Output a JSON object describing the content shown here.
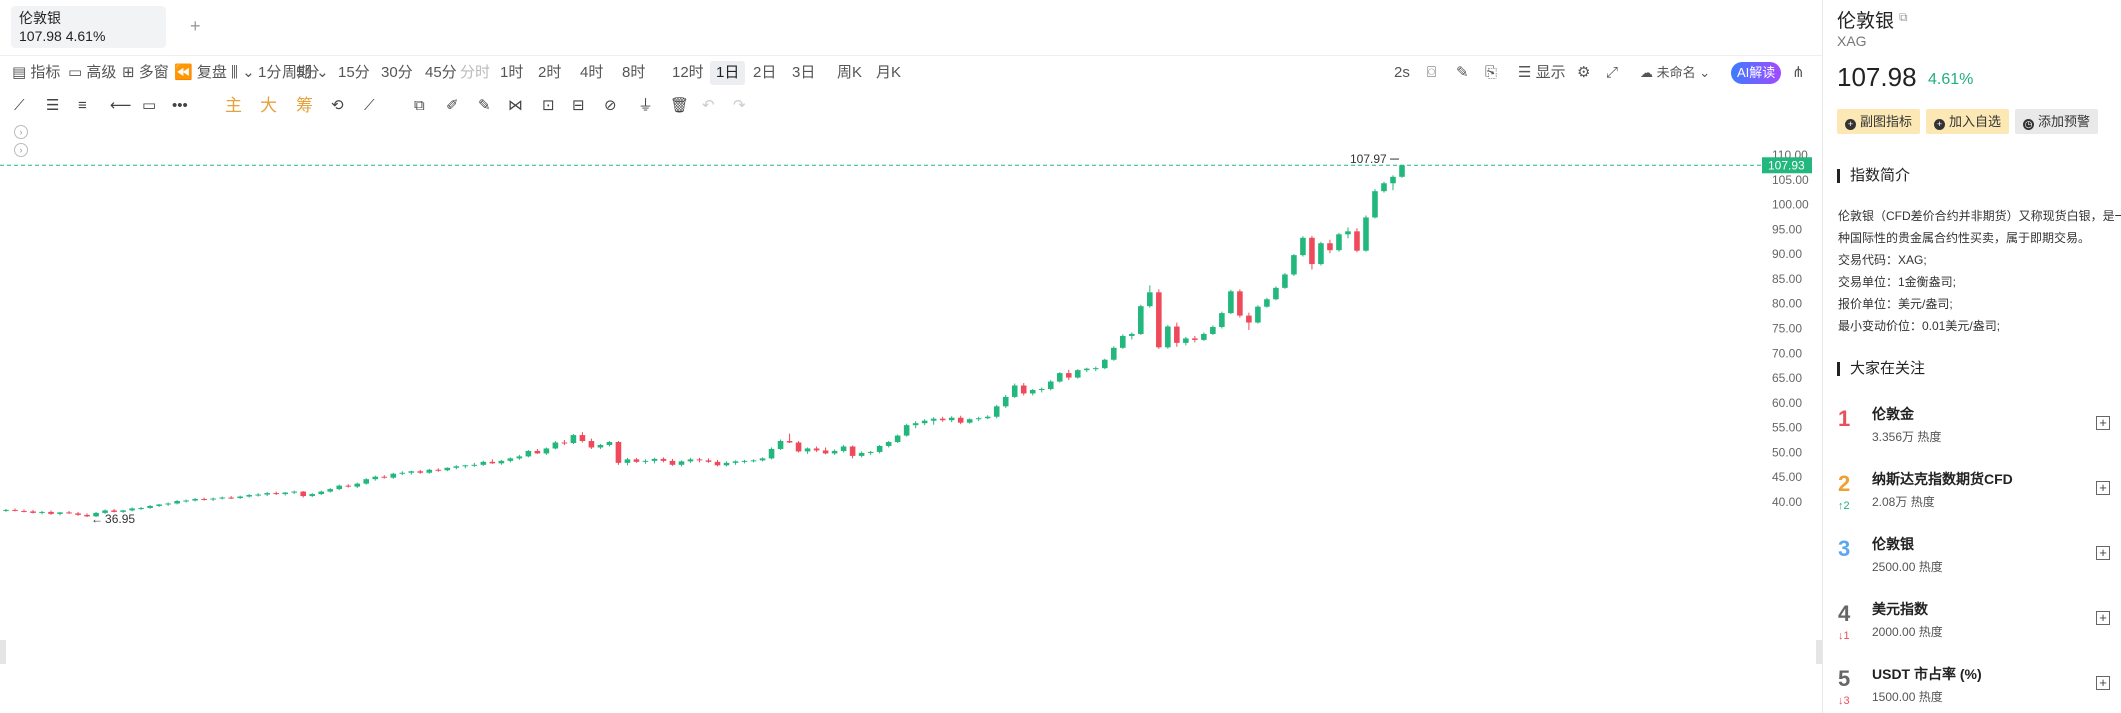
{
  "tabs": [
    {
      "name": "伦敦银",
      "price_change": "107.98 4.61%"
    }
  ],
  "add_tab_label": "+",
  "toolbar1": {
    "indicators": "指标",
    "advanced": "高级",
    "multi": "多窗",
    "replay": "复盘",
    "period": "周期",
    "intervals": [
      "1分",
      "5分",
      "15分",
      "30分",
      "45分",
      "分时",
      "1时",
      "2时",
      "4时",
      "8时",
      "12时",
      "1日",
      "2日",
      "3日",
      "周K",
      "月K"
    ],
    "disabled_interval": "分时",
    "selected_interval": "1日",
    "refresh": "2s",
    "display": "显示",
    "unnamed": "未命名",
    "ai": "AI解读"
  },
  "toolbar2": {
    "zhu": "主",
    "da": "大",
    "chou": "筹"
  },
  "chart_data": {
    "type": "candlestick",
    "ylim": [
      35,
      110
    ],
    "y_ticks": [
      "110.00",
      "105.00",
      "100.00",
      "95.00",
      "90.00",
      "85.00",
      "80.00",
      "75.00",
      "70.00",
      "65.00",
      "60.00",
      "55.00",
      "50.00",
      "45.00",
      "40.00"
    ],
    "last_price_label": "107.93",
    "high_label": "107.97",
    "low_label": "36.95",
    "up_color": "#22b77d",
    "down_color": "#ef4a5b",
    "candles": [
      [
        38.3,
        38.6,
        38.0,
        38.4
      ],
      [
        38.4,
        38.7,
        38.1,
        38.2
      ],
      [
        38.2,
        38.5,
        37.9,
        38.1
      ],
      [
        38.1,
        38.4,
        37.7,
        37.8
      ],
      [
        37.8,
        38.2,
        37.5,
        38.0
      ],
      [
        38.0,
        38.3,
        37.4,
        37.6
      ],
      [
        37.6,
        38.0,
        37.3,
        37.9
      ],
      [
        37.9,
        38.2,
        37.6,
        37.7
      ],
      [
        37.7,
        38.0,
        37.2,
        37.4
      ],
      [
        37.4,
        37.7,
        36.95,
        37.1
      ],
      [
        37.1,
        38.0,
        37.0,
        37.8
      ],
      [
        37.8,
        38.5,
        37.6,
        38.3
      ],
      [
        38.3,
        38.6,
        37.9,
        38.0
      ],
      [
        38.0,
        38.4,
        37.8,
        38.3
      ],
      [
        38.3,
        38.9,
        38.1,
        38.7
      ],
      [
        38.7,
        39.0,
        38.4,
        38.8
      ],
      [
        38.8,
        39.4,
        38.6,
        39.2
      ],
      [
        39.2,
        39.6,
        39.0,
        39.5
      ],
      [
        39.5,
        39.9,
        39.2,
        39.7
      ],
      [
        39.7,
        40.4,
        39.5,
        40.2
      ],
      [
        40.2,
        40.5,
        39.9,
        40.3
      ],
      [
        40.3,
        40.8,
        40.1,
        40.6
      ],
      [
        40.6,
        40.9,
        40.3,
        40.5
      ],
      [
        40.5,
        40.9,
        40.2,
        40.7
      ],
      [
        40.7,
        41.1,
        40.5,
        40.9
      ],
      [
        40.9,
        41.2,
        40.6,
        40.8
      ],
      [
        40.8,
        41.3,
        40.6,
        41.1
      ],
      [
        41.1,
        41.6,
        40.9,
        41.4
      ],
      [
        41.4,
        41.8,
        41.1,
        41.5
      ],
      [
        41.5,
        42.0,
        41.2,
        41.8
      ],
      [
        41.8,
        42.1,
        41.4,
        41.6
      ],
      [
        41.6,
        42.0,
        41.3,
        41.9
      ],
      [
        41.9,
        42.3,
        41.6,
        42.1
      ],
      [
        42.1,
        42.2,
        40.9,
        41.2
      ],
      [
        41.2,
        41.8,
        41.0,
        41.6
      ],
      [
        41.6,
        42.3,
        41.4,
        42.1
      ],
      [
        42.1,
        42.8,
        41.9,
        42.6
      ],
      [
        42.6,
        43.5,
        42.4,
        43.3
      ],
      [
        43.3,
        43.6,
        42.9,
        43.1
      ],
      [
        43.1,
        43.9,
        42.8,
        43.7
      ],
      [
        43.7,
        44.8,
        43.5,
        44.6
      ],
      [
        44.6,
        45.3,
        44.3,
        45.1
      ],
      [
        45.1,
        45.4,
        44.7,
        44.9
      ],
      [
        44.9,
        45.9,
        44.7,
        45.7
      ],
      [
        45.7,
        46.2,
        45.4,
        45.9
      ],
      [
        45.9,
        46.3,
        45.5,
        46.2
      ],
      [
        46.2,
        46.5,
        45.7,
        45.9
      ],
      [
        45.9,
        46.7,
        45.7,
        46.5
      ],
      [
        46.5,
        46.8,
        46.1,
        46.4
      ],
      [
        46.4,
        47.0,
        46.2,
        46.9
      ],
      [
        46.9,
        47.4,
        46.6,
        47.2
      ],
      [
        47.2,
        47.5,
        46.8,
        47.4
      ],
      [
        47.4,
        47.9,
        47.1,
        47.5
      ],
      [
        47.5,
        48.3,
        47.3,
        48.1
      ],
      [
        48.1,
        48.6,
        47.7,
        47.8
      ],
      [
        47.8,
        48.5,
        47.5,
        48.3
      ],
      [
        48.3,
        49.0,
        48.0,
        48.8
      ],
      [
        48.8,
        49.5,
        48.5,
        49.2
      ],
      [
        49.2,
        50.5,
        49.0,
        50.3
      ],
      [
        50.3,
        50.7,
        49.7,
        49.8
      ],
      [
        49.8,
        51.0,
        49.5,
        50.8
      ],
      [
        50.8,
        52.3,
        50.6,
        52.0
      ],
      [
        52.0,
        52.5,
        51.5,
        51.9
      ],
      [
        51.9,
        53.7,
        51.7,
        53.5
      ],
      [
        53.5,
        54.1,
        52.0,
        52.3
      ],
      [
        52.3,
        52.8,
        50.7,
        51.0
      ],
      [
        51.0,
        51.7,
        50.7,
        51.5
      ],
      [
        51.5,
        52.3,
        51.2,
        52.1
      ],
      [
        52.1,
        52.3,
        47.5,
        47.9
      ],
      [
        47.9,
        48.9,
        47.4,
        48.6
      ],
      [
        48.6,
        48.9,
        47.9,
        48.1
      ],
      [
        48.1,
        48.6,
        47.7,
        48.3
      ],
      [
        48.3,
        48.9,
        47.8,
        48.7
      ],
      [
        48.7,
        49.0,
        48.0,
        48.3
      ],
      [
        48.3,
        48.7,
        47.3,
        47.5
      ],
      [
        47.5,
        48.4,
        47.2,
        48.2
      ],
      [
        48.2,
        48.9,
        47.9,
        48.6
      ],
      [
        48.6,
        48.9,
        48.0,
        48.4
      ],
      [
        48.4,
        48.8,
        47.9,
        48.1
      ],
      [
        48.1,
        48.5,
        47.2,
        47.4
      ],
      [
        47.4,
        48.2,
        47.2,
        47.9
      ],
      [
        47.9,
        48.4,
        47.5,
        48.2
      ],
      [
        48.2,
        48.5,
        47.8,
        48.3
      ],
      [
        48.3,
        48.6,
        48.0,
        48.4
      ],
      [
        48.4,
        49.0,
        48.2,
        48.8
      ],
      [
        48.8,
        51.0,
        48.6,
        50.7
      ],
      [
        50.7,
        52.6,
        50.5,
        52.3
      ],
      [
        52.3,
        53.8,
        51.9,
        52.0
      ],
      [
        52.0,
        52.3,
        50.0,
        50.2
      ],
      [
        50.2,
        51.0,
        49.7,
        50.8
      ],
      [
        50.8,
        51.2,
        50.1,
        50.4
      ],
      [
        50.4,
        51.0,
        49.6,
        49.8
      ],
      [
        49.8,
        50.6,
        49.5,
        50.3
      ],
      [
        50.3,
        51.5,
        50.0,
        51.2
      ],
      [
        51.2,
        51.4,
        48.8,
        49.3
      ],
      [
        49.3,
        50.2,
        49.0,
        49.9
      ],
      [
        49.9,
        50.3,
        49.5,
        50.1
      ],
      [
        50.1,
        51.5,
        49.8,
        51.3
      ],
      [
        51.3,
        52.3,
        51.0,
        52.1
      ],
      [
        52.1,
        53.6,
        51.9,
        53.4
      ],
      [
        53.4,
        55.8,
        53.2,
        55.5
      ],
      [
        55.5,
        56.3,
        54.9,
        55.9
      ],
      [
        55.9,
        56.7,
        55.5,
        56.4
      ],
      [
        56.4,
        57.1,
        55.6,
        56.8
      ],
      [
        56.8,
        57.2,
        56.2,
        56.5
      ],
      [
        56.5,
        57.3,
        56.1,
        57.0
      ],
      [
        57.0,
        57.4,
        55.7,
        56.0
      ],
      [
        56.0,
        56.9,
        55.8,
        56.7
      ],
      [
        56.7,
        57.2,
        56.3,
        56.9
      ],
      [
        56.9,
        57.5,
        56.7,
        57.2
      ],
      [
        57.2,
        59.6,
        56.9,
        59.3
      ],
      [
        59.3,
        61.6,
        59.0,
        61.2
      ],
      [
        61.2,
        63.9,
        61.0,
        63.5
      ],
      [
        63.5,
        64.0,
        61.5,
        61.9
      ],
      [
        61.9,
        62.8,
        61.5,
        62.6
      ],
      [
        62.6,
        63.1,
        62.1,
        62.8
      ],
      [
        62.8,
        64.6,
        62.5,
        64.3
      ],
      [
        64.3,
        66.2,
        64.1,
        66.0
      ],
      [
        66.0,
        66.7,
        64.6,
        65.1
      ],
      [
        65.1,
        66.8,
        64.9,
        66.6
      ],
      [
        66.6,
        67.1,
        66.2,
        66.9
      ],
      [
        66.9,
        67.3,
        66.4,
        67.0
      ],
      [
        67.0,
        68.9,
        66.8,
        68.7
      ],
      [
        68.7,
        71.4,
        68.5,
        71.1
      ],
      [
        71.1,
        73.8,
        70.9,
        73.5
      ],
      [
        73.5,
        74.2,
        72.8,
        73.9
      ],
      [
        73.9,
        79.8,
        73.7,
        79.5
      ],
      [
        79.5,
        83.7,
        79.2,
        82.3
      ],
      [
        82.3,
        82.9,
        70.9,
        71.2
      ],
      [
        71.2,
        75.7,
        70.9,
        75.4
      ],
      [
        75.4,
        76.2,
        71.3,
        72.1
      ],
      [
        72.1,
        73.3,
        71.6,
        73.0
      ],
      [
        73.0,
        73.5,
        72.2,
        72.7
      ],
      [
        72.7,
        74.2,
        72.5,
        73.9
      ],
      [
        73.9,
        75.6,
        73.7,
        75.3
      ],
      [
        75.3,
        78.4,
        75.0,
        78.1
      ],
      [
        78.1,
        82.8,
        77.9,
        82.5
      ],
      [
        82.5,
        82.9,
        77.2,
        77.6
      ],
      [
        77.6,
        78.2,
        74.7,
        76.2
      ],
      [
        76.2,
        79.7,
        76.0,
        79.4
      ],
      [
        79.4,
        81.2,
        79.2,
        80.9
      ],
      [
        80.9,
        83.5,
        80.7,
        83.2
      ],
      [
        83.2,
        86.2,
        83.0,
        85.9
      ],
      [
        85.9,
        90.0,
        85.6,
        89.8
      ],
      [
        89.8,
        93.6,
        89.5,
        93.3
      ],
      [
        93.3,
        93.7,
        86.9,
        88.0
      ],
      [
        88.0,
        92.5,
        87.7,
        92.2
      ],
      [
        92.2,
        92.9,
        90.2,
        90.8
      ],
      [
        90.8,
        94.3,
        90.5,
        94.0
      ],
      [
        94.0,
        95.4,
        93.2,
        94.6
      ],
      [
        94.6,
        95.2,
        90.4,
        90.7
      ],
      [
        90.7,
        97.8,
        90.5,
        97.4
      ],
      [
        97.4,
        103.1,
        97.2,
        102.7
      ],
      [
        102.7,
        104.6,
        102.4,
        104.3
      ],
      [
        104.3,
        105.9,
        102.9,
        105.6
      ],
      [
        105.6,
        107.97,
        105.4,
        107.93
      ]
    ]
  },
  "right": {
    "title": "伦敦银",
    "code": "XAG",
    "price": "107.98",
    "change": "4.61%",
    "buttons": [
      "副图指标",
      "加入自选",
      "添加预警"
    ],
    "intro_title": "指数简介",
    "intro_lines": [
      "伦敦银（CFD差价合约并非期货）又称现货白银，是一",
      "种国际性的贵金属合约性买卖，属于即期交易。",
      "交易代码：XAG;",
      "交易单位：1金衡盎司;",
      "报价单位：美元/盎司;",
      "最小变动价位：0.01美元/盎司;"
    ],
    "watch_title": "大家在关注",
    "watch": [
      {
        "rank": "1",
        "move": "",
        "name": "伦敦金",
        "heat": "3.356万 热度",
        "color": "#e8505b"
      },
      {
        "rank": "2",
        "move": "↑2",
        "name": "纳斯达克指数期货CFD",
        "heat": "2.08万 热度",
        "color": "#f0a030"
      },
      {
        "rank": "3",
        "move": "",
        "name": "伦敦银",
        "heat": "2500.00 热度",
        "color": "#5aa8f0"
      },
      {
        "rank": "4",
        "move": "↓1",
        "name": "美元指数",
        "heat": "2000.00 热度",
        "color": "#666666"
      },
      {
        "rank": "5",
        "move": "↓3",
        "name": "USDT 市占率 (%)",
        "heat": "1500.00 热度",
        "color": "#666666"
      }
    ]
  }
}
